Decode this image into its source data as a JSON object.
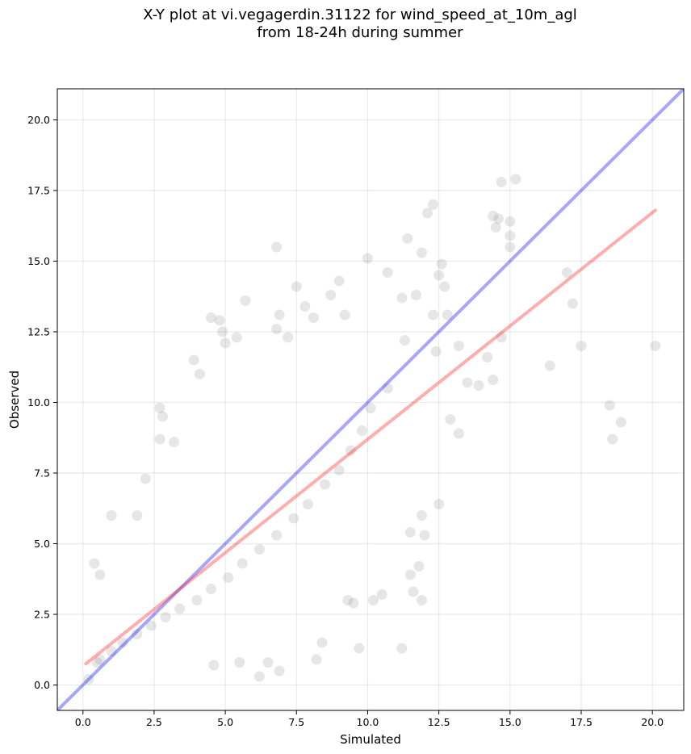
{
  "chart_data": {
    "type": "scatter",
    "title_line1": "X-Y plot at vi.vegagerdin.31122 for wind_speed_at_10m_agl",
    "title_line2": "from 18-24h during summer",
    "xlabel": "Simulated",
    "ylabel": "Observed",
    "xlim": [
      -0.9,
      21.1
    ],
    "ylim": [
      -0.9,
      21.1
    ],
    "xticks": [
      0.0,
      2.5,
      5.0,
      7.5,
      10.0,
      12.5,
      15.0,
      17.5,
      20.0
    ],
    "yticks": [
      0.0,
      2.5,
      5.0,
      7.5,
      10.0,
      12.5,
      15.0,
      17.5,
      20.0
    ],
    "xtick_labels": [
      "0.0",
      "2.5",
      "5.0",
      "7.5",
      "10.0",
      "12.5",
      "15.0",
      "17.5",
      "20.0"
    ],
    "ytick_labels": [
      "0.0",
      "2.5",
      "5.0",
      "7.5",
      "10.0",
      "12.5",
      "15.0",
      "17.5",
      "20.0"
    ],
    "grid": true,
    "point_color": "#808080",
    "identity_line": {
      "color": "#0000ff",
      "x": [
        -0.9,
        21.1
      ],
      "y": [
        -0.9,
        21.1
      ]
    },
    "regression_line": {
      "color": "#ff0000",
      "x": [
        0.1,
        20.1
      ],
      "y": [
        0.75,
        16.8
      ]
    },
    "points": [
      {
        "x": 6.8,
        "y": 15.5
      },
      {
        "x": 14.7,
        "y": 17.8
      },
      {
        "x": 15.2,
        "y": 17.9
      },
      {
        "x": 12.3,
        "y": 17.0
      },
      {
        "x": 12.1,
        "y": 16.7
      },
      {
        "x": 14.4,
        "y": 16.6
      },
      {
        "x": 14.6,
        "y": 16.5
      },
      {
        "x": 15.0,
        "y": 16.4
      },
      {
        "x": 14.5,
        "y": 16.2
      },
      {
        "x": 15.0,
        "y": 15.9
      },
      {
        "x": 15.0,
        "y": 15.5
      },
      {
        "x": 11.4,
        "y": 15.8
      },
      {
        "x": 11.9,
        "y": 15.3
      },
      {
        "x": 10.0,
        "y": 15.1
      },
      {
        "x": 10.7,
        "y": 14.6
      },
      {
        "x": 12.6,
        "y": 14.9
      },
      {
        "x": 12.5,
        "y": 14.5
      },
      {
        "x": 9.0,
        "y": 14.3
      },
      {
        "x": 7.5,
        "y": 14.1
      },
      {
        "x": 12.7,
        "y": 14.1
      },
      {
        "x": 17.0,
        "y": 14.6
      },
      {
        "x": 17.2,
        "y": 13.5
      },
      {
        "x": 16.4,
        "y": 11.3
      },
      {
        "x": 17.5,
        "y": 12.0
      },
      {
        "x": 18.5,
        "y": 9.9
      },
      {
        "x": 18.9,
        "y": 9.3
      },
      {
        "x": 18.6,
        "y": 8.7
      },
      {
        "x": 20.1,
        "y": 12.0
      },
      {
        "x": 14.7,
        "y": 12.3
      },
      {
        "x": 14.2,
        "y": 11.6
      },
      {
        "x": 14.4,
        "y": 10.8
      },
      {
        "x": 13.5,
        "y": 10.7
      },
      {
        "x": 13.9,
        "y": 10.6
      },
      {
        "x": 12.3,
        "y": 13.1
      },
      {
        "x": 12.8,
        "y": 13.1
      },
      {
        "x": 11.7,
        "y": 13.8
      },
      {
        "x": 11.2,
        "y": 13.7
      },
      {
        "x": 5.7,
        "y": 13.6
      },
      {
        "x": 4.5,
        "y": 13.0
      },
      {
        "x": 4.8,
        "y": 12.9
      },
      {
        "x": 4.9,
        "y": 12.5
      },
      {
        "x": 5.0,
        "y": 12.1
      },
      {
        "x": 6.9,
        "y": 13.1
      },
      {
        "x": 7.8,
        "y": 13.4
      },
      {
        "x": 8.1,
        "y": 13.0
      },
      {
        "x": 8.7,
        "y": 13.8
      },
      {
        "x": 9.2,
        "y": 13.1
      },
      {
        "x": 7.2,
        "y": 12.3
      },
      {
        "x": 6.8,
        "y": 12.6
      },
      {
        "x": 5.4,
        "y": 12.3
      },
      {
        "x": 4.1,
        "y": 11.0
      },
      {
        "x": 3.9,
        "y": 11.5
      },
      {
        "x": 2.7,
        "y": 9.8
      },
      {
        "x": 2.8,
        "y": 9.5
      },
      {
        "x": 3.2,
        "y": 8.6
      },
      {
        "x": 2.7,
        "y": 8.7
      },
      {
        "x": 13.2,
        "y": 8.9
      },
      {
        "x": 12.9,
        "y": 9.4
      },
      {
        "x": 12.5,
        "y": 6.4
      },
      {
        "x": 11.9,
        "y": 6.0
      },
      {
        "x": 12.0,
        "y": 5.3
      },
      {
        "x": 11.5,
        "y": 5.4
      },
      {
        "x": 11.8,
        "y": 4.2
      },
      {
        "x": 11.5,
        "y": 3.9
      },
      {
        "x": 11.6,
        "y": 3.3
      },
      {
        "x": 11.9,
        "y": 3.0
      },
      {
        "x": 11.2,
        "y": 1.3
      },
      {
        "x": 10.5,
        "y": 3.2
      },
      {
        "x": 10.2,
        "y": 3.0
      },
      {
        "x": 9.7,
        "y": 1.3
      },
      {
        "x": 9.5,
        "y": 2.9
      },
      {
        "x": 9.3,
        "y": 3.0
      },
      {
        "x": 8.4,
        "y": 1.5
      },
      {
        "x": 8.2,
        "y": 0.9
      },
      {
        "x": 6.9,
        "y": 0.5
      },
      {
        "x": 6.5,
        "y": 0.8
      },
      {
        "x": 6.2,
        "y": 0.3
      },
      {
        "x": 5.5,
        "y": 0.8
      },
      {
        "x": 4.6,
        "y": 0.7
      },
      {
        "x": 1.0,
        "y": 6.0
      },
      {
        "x": 0.4,
        "y": 4.3
      },
      {
        "x": 0.6,
        "y": 3.9
      },
      {
        "x": 1.9,
        "y": 6.0
      },
      {
        "x": 2.2,
        "y": 7.3
      },
      {
        "x": 0.2,
        "y": 0.2
      },
      {
        "x": 0.5,
        "y": 0.8
      },
      {
        "x": 11.3,
        "y": 12.2
      },
      {
        "x": 13.2,
        "y": 12.0
      },
      {
        "x": 12.4,
        "y": 11.8
      },
      {
        "x": 10.7,
        "y": 10.5
      },
      {
        "x": 10.1,
        "y": 9.8
      },
      {
        "x": 9.8,
        "y": 9.0
      },
      {
        "x": 9.4,
        "y": 8.3
      },
      {
        "x": 9.0,
        "y": 7.6
      },
      {
        "x": 8.5,
        "y": 7.1
      },
      {
        "x": 7.9,
        "y": 6.4
      },
      {
        "x": 7.4,
        "y": 5.9
      },
      {
        "x": 6.8,
        "y": 5.3
      },
      {
        "x": 6.2,
        "y": 4.8
      },
      {
        "x": 5.6,
        "y": 4.3
      },
      {
        "x": 5.1,
        "y": 3.8
      },
      {
        "x": 4.5,
        "y": 3.4
      },
      {
        "x": 4.0,
        "y": 3.0
      },
      {
        "x": 3.4,
        "y": 2.7
      },
      {
        "x": 2.9,
        "y": 2.4
      },
      {
        "x": 2.4,
        "y": 2.1
      },
      {
        "x": 1.9,
        "y": 1.8
      },
      {
        "x": 1.4,
        "y": 1.5
      },
      {
        "x": 1.0,
        "y": 1.2
      },
      {
        "x": 0.6,
        "y": 0.9
      }
    ]
  }
}
